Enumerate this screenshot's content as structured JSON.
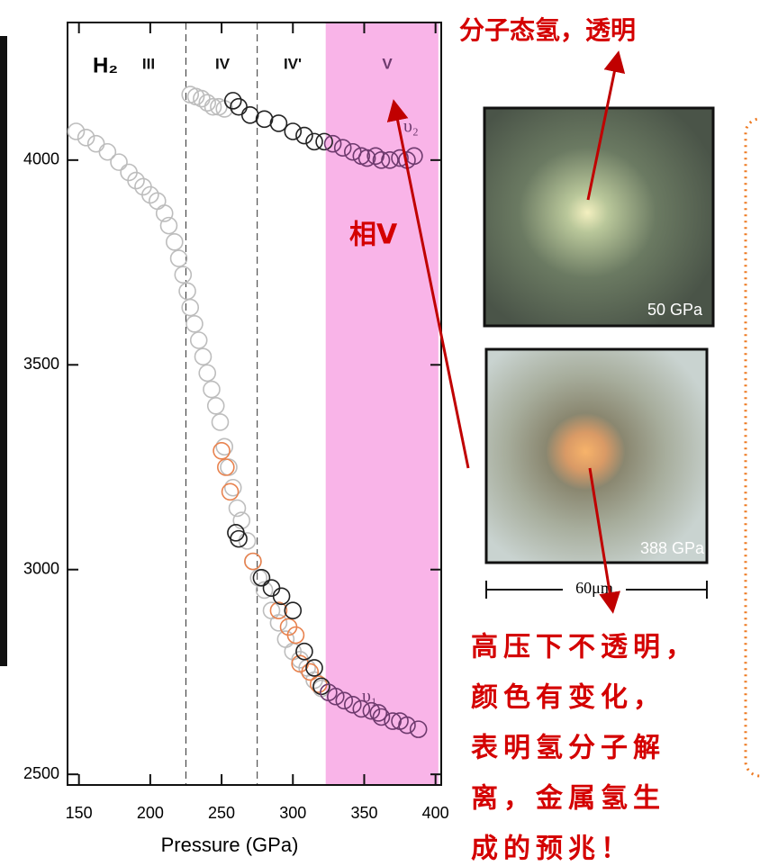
{
  "chart_data": {
    "type": "scatter",
    "xlabel": "Pressure (GPa)",
    "xlim": [
      142,
      404
    ],
    "ylim": [
      2474,
      4336
    ],
    "xticks": [
      150,
      200,
      250,
      300,
      350,
      400
    ],
    "yticks": [
      2500,
      3000,
      3500,
      4000
    ],
    "phase_boundaries": [
      225,
      275
    ],
    "highlight_xlim": [
      323,
      402
    ],
    "highlight_color": "#f9b4e8",
    "formula": "H₂",
    "phase_labels": [
      "III",
      "IV",
      "IV'",
      "V"
    ],
    "annotations": {
      "nu2": "υ₂",
      "nu1": "υ₁",
      "phase": "相V"
    },
    "series": [
      {
        "color": "#bdbdbd",
        "x": [
          148,
          155,
          162,
          170,
          178,
          185,
          190,
          195,
          200,
          205,
          210,
          213,
          217,
          220,
          223,
          226,
          228,
          231,
          234,
          237,
          240,
          243,
          246,
          249,
          252,
          255,
          258,
          261,
          264,
          268,
          272,
          276,
          280,
          285,
          290,
          295,
          300,
          305,
          310,
          315,
          320,
          228,
          232,
          236,
          240,
          244,
          248,
          252
        ],
        "values": [
          4070,
          4055,
          4040,
          4020,
          3995,
          3970,
          3950,
          3935,
          3915,
          3900,
          3870,
          3840,
          3800,
          3760,
          3720,
          3680,
          3640,
          3600,
          3560,
          3520,
          3480,
          3440,
          3400,
          3360,
          3300,
          3250,
          3200,
          3150,
          3120,
          3070,
          3020,
          2980,
          2950,
          2900,
          2870,
          2830,
          2800,
          2780,
          2760,
          2730,
          2710,
          4160,
          4155,
          4150,
          4140,
          4130,
          4130,
          4125
        ]
      },
      {
        "color": "#e8824e",
        "x": [
          250,
          253,
          256,
          272,
          290,
          297,
          302,
          305,
          312,
          318
        ],
        "values": [
          3290,
          3250,
          3190,
          3020,
          2900,
          2860,
          2840,
          2770,
          2750,
          2720
        ]
      },
      {
        "color": "#222222",
        "x": [
          260,
          262,
          278,
          285,
          292,
          300,
          308,
          315,
          320,
          258,
          262,
          270,
          280,
          290,
          300,
          308,
          315,
          322
        ],
        "values": [
          3090,
          3075,
          2980,
          2955,
          2935,
          2900,
          2800,
          2760,
          2715,
          4145,
          4130,
          4110,
          4100,
          4090,
          4070,
          4060,
          4045,
          4045
        ]
      },
      {
        "color": "#6e3a6e",
        "x": [
          325,
          330,
          336,
          342,
          348,
          355,
          360,
          362,
          370,
          375,
          380,
          388,
          328,
          335,
          342,
          348,
          352,
          358,
          362,
          368,
          375,
          380,
          385
        ],
        "values": [
          2700,
          2690,
          2680,
          2670,
          2660,
          2655,
          2650,
          2640,
          2630,
          2630,
          2620,
          2610,
          4040,
          4030,
          4020,
          4010,
          4005,
          4010,
          4000,
          4000,
          4005,
          4000,
          4010
        ]
      }
    ]
  },
  "side": {
    "title": "分子态氢，透明",
    "photo_labels": [
      "50 GPa",
      "388 GPa"
    ],
    "scale": "60μm",
    "note": [
      "高压下不透明，",
      "颜色有变化，",
      "表明氢分子解",
      "离，金属氢生",
      "成的预兆！"
    ]
  }
}
